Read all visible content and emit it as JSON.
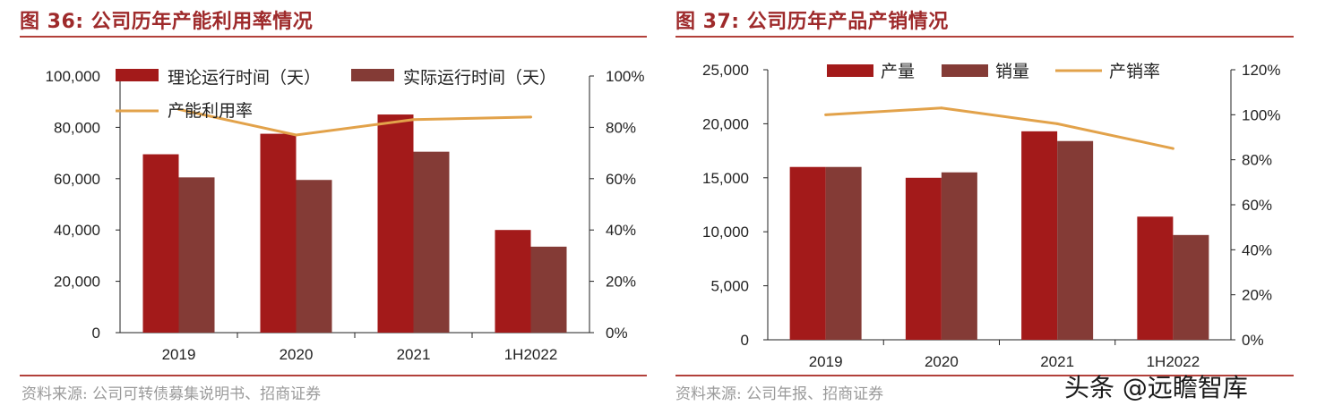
{
  "left": {
    "title": "图 36:  公司历年产能利用率情况",
    "source": "资料来源:  公司可转债募集说明书、招商证券"
  },
  "right": {
    "title": "图 37:  公司历年产品产销情况",
    "source": "资料来源:  公司年报、招商证券"
  },
  "watermark": "头条 @远瞻智库",
  "chart_data": [
    {
      "type": "bar",
      "categories": [
        "2019",
        "2020",
        "2021",
        "1H2022"
      ],
      "series": [
        {
          "name": "理论运行时间（天）",
          "axis": "left",
          "values": [
            69500,
            77500,
            85000,
            40000
          ],
          "color": "#a31a1a"
        },
        {
          "name": "实际运行时间（天）",
          "axis": "left",
          "values": [
            60500,
            59500,
            70500,
            33500
          ],
          "color": "#843b36"
        },
        {
          "name": "产能利用率",
          "type": "line",
          "axis": "right",
          "values": [
            0.87,
            0.77,
            0.83,
            0.84
          ],
          "color": "#e2a24a"
        }
      ],
      "y_ticks": [
        "100,000",
        "80,000",
        "60,000",
        "40,000",
        "20,000",
        "0"
      ],
      "y_ticks_right": [
        "100%",
        "80%",
        "60%",
        "40%",
        "20%",
        "0%"
      ],
      "ylim": [
        0,
        100000
      ],
      "ylim_right": [
        0,
        1.0
      ],
      "legend_position": "top"
    },
    {
      "type": "bar",
      "categories": [
        "2019",
        "2020",
        "2021",
        "1H2022"
      ],
      "series": [
        {
          "name": "产量",
          "axis": "left",
          "values": [
            16000,
            15000,
            19300,
            11400
          ],
          "color": "#a31a1a"
        },
        {
          "name": "销量",
          "axis": "left",
          "values": [
            16000,
            15500,
            18400,
            9700
          ],
          "color": "#843b36"
        },
        {
          "name": "产销率",
          "type": "line",
          "axis": "right",
          "values": [
            1.0,
            1.03,
            0.96,
            0.85
          ],
          "color": "#e2a24a"
        }
      ],
      "y_ticks": [
        "25,000",
        "20,000",
        "15,000",
        "10,000",
        "5,000",
        "0"
      ],
      "y_ticks_right": [
        "120%",
        "100%",
        "80%",
        "60%",
        "40%",
        "20%",
        "0%"
      ],
      "ylim": [
        0,
        25000
      ],
      "ylim_right": [
        0,
        1.2
      ],
      "legend_position": "top"
    }
  ]
}
